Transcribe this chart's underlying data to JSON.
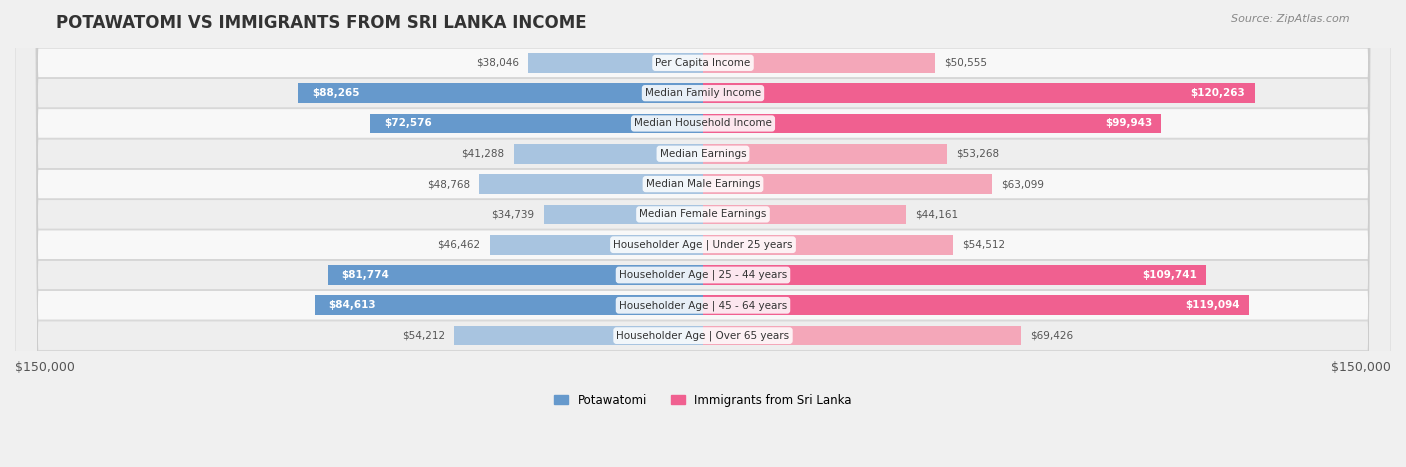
{
  "title": "POTAWATOMI VS IMMIGRANTS FROM SRI LANKA INCOME",
  "source": "Source: ZipAtlas.com",
  "categories": [
    "Per Capita Income",
    "Median Family Income",
    "Median Household Income",
    "Median Earnings",
    "Median Male Earnings",
    "Median Female Earnings",
    "Householder Age | Under 25 years",
    "Householder Age | 25 - 44 years",
    "Householder Age | 45 - 64 years",
    "Householder Age | Over 65 years"
  ],
  "potawatomi": [
    38046,
    88265,
    72576,
    41288,
    48768,
    34739,
    46462,
    81774,
    84613,
    54212
  ],
  "sri_lanka": [
    50555,
    120263,
    99943,
    53268,
    63099,
    44161,
    54512,
    109741,
    119094,
    69426
  ],
  "potawatomi_labels": [
    "$38,046",
    "$88,265",
    "$72,576",
    "$41,288",
    "$48,768",
    "$34,739",
    "$46,462",
    "$81,774",
    "$84,613",
    "$54,212"
  ],
  "sri_lanka_labels": [
    "$50,555",
    "$120,263",
    "$99,943",
    "$53,268",
    "$63,099",
    "$44,161",
    "$54,512",
    "$109,741",
    "$119,094",
    "$69,426"
  ],
  "color_potawatomi_light": "#a8c4e0",
  "color_potawatomi_dark": "#6699cc",
  "color_sri_lanka_light": "#f4a7b9",
  "color_sri_lanka_dark": "#f06090",
  "max_value": 150000,
  "axis_label_left": "$150,000",
  "axis_label_right": "$150,000",
  "bar_height": 0.65,
  "bg_color": "#f0f0f0",
  "row_bg_light": "#f8f8f8",
  "row_bg_dark": "#eeeeee"
}
